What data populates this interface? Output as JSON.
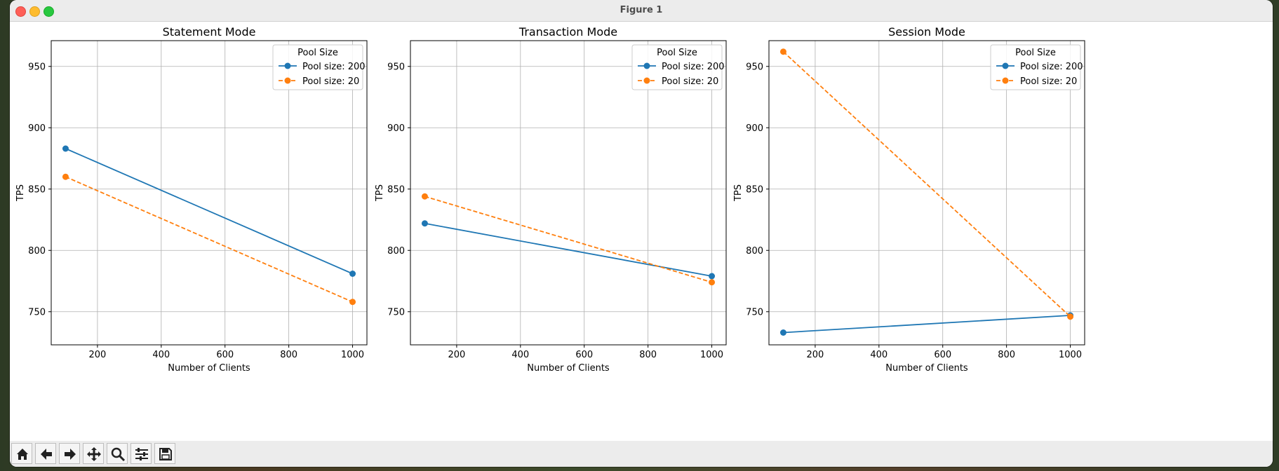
{
  "window": {
    "title": "Figure 1"
  },
  "toolbar": {
    "buttons": [
      {
        "name": "home",
        "icon": "home-icon"
      },
      {
        "name": "back",
        "icon": "arrow-left-icon"
      },
      {
        "name": "forward",
        "icon": "arrow-right-icon"
      },
      {
        "name": "pan",
        "icon": "move-icon"
      },
      {
        "name": "zoom",
        "icon": "zoom-icon"
      },
      {
        "name": "configure",
        "icon": "sliders-icon"
      },
      {
        "name": "save",
        "icon": "save-icon"
      }
    ]
  },
  "colors": {
    "series1": "#1f77b4",
    "series2": "#ff7f0e",
    "grid": "#b0b0b0"
  },
  "chart_data": [
    {
      "type": "line",
      "title": "Statement Mode",
      "xlabel": "Number of Clients",
      "ylabel": "TPS",
      "xlim": [
        55,
        1045
      ],
      "ylim": [
        723,
        971
      ],
      "xticks": [
        200,
        400,
        600,
        800,
        1000
      ],
      "yticks": [
        750,
        800,
        850,
        900,
        950
      ],
      "grid": true,
      "legend_title": "Pool Size",
      "legend_position": "top-right",
      "series": [
        {
          "name": "Pool size: 200",
          "x": [
            100,
            1000
          ],
          "y": [
            883,
            781
          ],
          "style": "solid"
        },
        {
          "name": "Pool size: 20",
          "x": [
            100,
            1000
          ],
          "y": [
            860,
            758
          ],
          "style": "dashed"
        }
      ]
    },
    {
      "type": "line",
      "title": "Transaction Mode",
      "xlabel": "Number of Clients",
      "ylabel": "TPS",
      "xlim": [
        55,
        1045
      ],
      "ylim": [
        723,
        971
      ],
      "xticks": [
        200,
        400,
        600,
        800,
        1000
      ],
      "yticks": [
        750,
        800,
        850,
        900,
        950
      ],
      "grid": true,
      "legend_title": "Pool Size",
      "legend_position": "top-right",
      "series": [
        {
          "name": "Pool size: 200",
          "x": [
            100,
            1000
          ],
          "y": [
            822,
            779
          ],
          "style": "solid"
        },
        {
          "name": "Pool size: 20",
          "x": [
            100,
            1000
          ],
          "y": [
            844,
            774
          ],
          "style": "dashed"
        }
      ]
    },
    {
      "type": "line",
      "title": "Session Mode",
      "xlabel": "Number of Clients",
      "ylabel": "TPS",
      "xlim": [
        55,
        1045
      ],
      "ylim": [
        723,
        971
      ],
      "xticks": [
        200,
        400,
        600,
        800,
        1000
      ],
      "yticks": [
        750,
        800,
        850,
        900,
        950
      ],
      "grid": true,
      "legend_title": "Pool Size",
      "legend_position": "top-right",
      "series": [
        {
          "name": "Pool size: 200",
          "x": [
            100,
            1000
          ],
          "y": [
            733,
            747
          ],
          "style": "solid"
        },
        {
          "name": "Pool size: 20",
          "x": [
            100,
            1000
          ],
          "y": [
            962,
            746
          ],
          "style": "dashed"
        }
      ]
    }
  ]
}
